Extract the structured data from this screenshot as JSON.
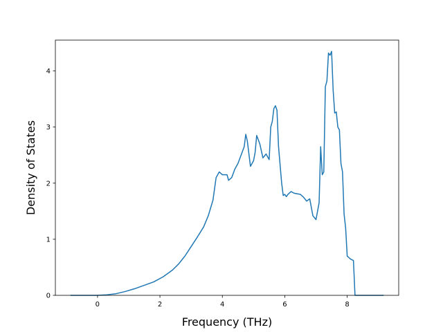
{
  "chart_data": {
    "type": "line",
    "xlabel": "Frequency (THz)",
    "ylabel": "Density of States",
    "xlim": [
      -1.35,
      9.65
    ],
    "ylim": [
      0,
      4.55
    ],
    "xticks": [
      0,
      2,
      4,
      6,
      8
    ],
    "yticks": [
      0,
      1,
      2,
      3,
      4
    ],
    "grid": false,
    "series_color": "#1f77b4",
    "series": [
      {
        "x": [
          -0.85,
          -0.5,
          0.0,
          0.3,
          0.6,
          0.9,
          1.2,
          1.5,
          1.8,
          2.1,
          2.4,
          2.6,
          2.8,
          3.0,
          3.2,
          3.4,
          3.55,
          3.7,
          3.8,
          3.9,
          4.0,
          4.15,
          4.2,
          4.3,
          4.4,
          4.5,
          4.6,
          4.7,
          4.75,
          4.8,
          4.9,
          5.0,
          5.05,
          5.1,
          5.2,
          5.3,
          5.4,
          5.5,
          5.55,
          5.6,
          5.65,
          5.7,
          5.75,
          5.8,
          5.9,
          5.95,
          6.0,
          6.05,
          6.1,
          6.2,
          6.3,
          6.5,
          6.6,
          6.7,
          6.8,
          6.9,
          7.0,
          7.1,
          7.15,
          7.2,
          7.25,
          7.3,
          7.35,
          7.4,
          7.45,
          7.5,
          7.55,
          7.6,
          7.65,
          7.7,
          7.75,
          7.8,
          7.85,
          7.9,
          7.95,
          8.0,
          8.1,
          8.2,
          8.25,
          8.35,
          8.4,
          8.45,
          8.6,
          8.8,
          9.15
        ],
        "y": [
          0.0,
          0.0,
          0.0,
          0.01,
          0.03,
          0.07,
          0.12,
          0.18,
          0.24,
          0.33,
          0.45,
          0.56,
          0.7,
          0.87,
          1.04,
          1.22,
          1.42,
          1.7,
          2.1,
          2.2,
          2.15,
          2.15,
          2.05,
          2.1,
          2.25,
          2.35,
          2.5,
          2.65,
          2.87,
          2.75,
          2.3,
          2.4,
          2.55,
          2.85,
          2.7,
          2.45,
          2.52,
          2.42,
          3.0,
          3.1,
          3.33,
          3.38,
          3.3,
          2.65,
          2.0,
          1.78,
          1.8,
          1.76,
          1.8,
          1.85,
          1.82,
          1.8,
          1.75,
          1.68,
          1.72,
          1.42,
          1.35,
          1.65,
          2.65,
          2.15,
          2.2,
          3.72,
          3.82,
          4.32,
          4.28,
          4.35,
          3.65,
          3.25,
          3.27,
          3.0,
          2.95,
          2.35,
          2.2,
          1.45,
          1.2,
          0.7,
          0.65,
          0.62,
          0.0,
          0.0,
          0.0,
          0.0,
          0.0,
          0.0,
          0.0
        ]
      }
    ]
  }
}
